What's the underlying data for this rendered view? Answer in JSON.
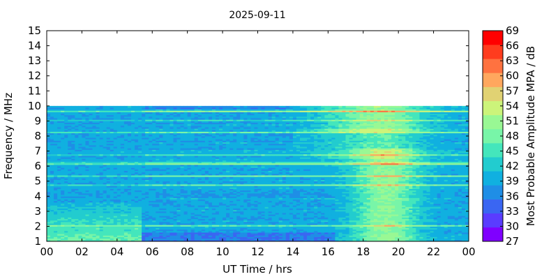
{
  "chart_data": {
    "type": "heatmap",
    "title": "2025-09-11",
    "xlabel": "UT Time / hrs",
    "ylabel": "Frequency / MHz",
    "xlim": [
      0,
      24
    ],
    "ylim": [
      1,
      15
    ],
    "x_ticks": [
      "00",
      "02",
      "04",
      "06",
      "08",
      "10",
      "12",
      "14",
      "16",
      "18",
      "20",
      "22",
      "00"
    ],
    "y_ticks": [
      "1",
      "2",
      "3",
      "4",
      "5",
      "6",
      "7",
      "8",
      "9",
      "10",
      "11",
      "12",
      "13",
      "14",
      "15"
    ],
    "data_max_frequency_mhz": 10,
    "colorbar": {
      "label": "Most Probable Amplitude MPA / dB",
      "tick_labels": [
        "27",
        "30",
        "33",
        "36",
        "39",
        "42",
        "45",
        "48",
        "51",
        "54",
        "57",
        "60",
        "63",
        "66",
        "69"
      ],
      "colors": [
        "#7f00ff",
        "#5a3cff",
        "#3a66f2",
        "#1f8ee6",
        "#10b0e0",
        "#22cccf",
        "#44e6bc",
        "#78f5a8",
        "#99f894",
        "#ccf47a",
        "#e1d273",
        "#ffa75e",
        "#ff7240",
        "#ff3c1e",
        "#ff0000"
      ]
    },
    "features": [
      {
        "band": "background",
        "time_hrs": [
          0,
          24
        ],
        "freq_mhz": [
          1,
          10
        ],
        "mpa_db": 40
      },
      {
        "band": "night-low",
        "time_hrs": [
          0,
          5.5
        ],
        "freq_mhz": [
          1,
          3.5
        ],
        "mpa_db": 47
      },
      {
        "band": "evening-enhancement",
        "time_hrs": [
          17.5,
          21
        ],
        "freq_mhz": [
          1,
          7
        ],
        "mpa_db": 50
      },
      {
        "band": "evening-top",
        "time_hrs": [
          15,
          21
        ],
        "freq_mhz": [
          8.3,
          10
        ],
        "mpa_db": 48
      }
    ]
  }
}
